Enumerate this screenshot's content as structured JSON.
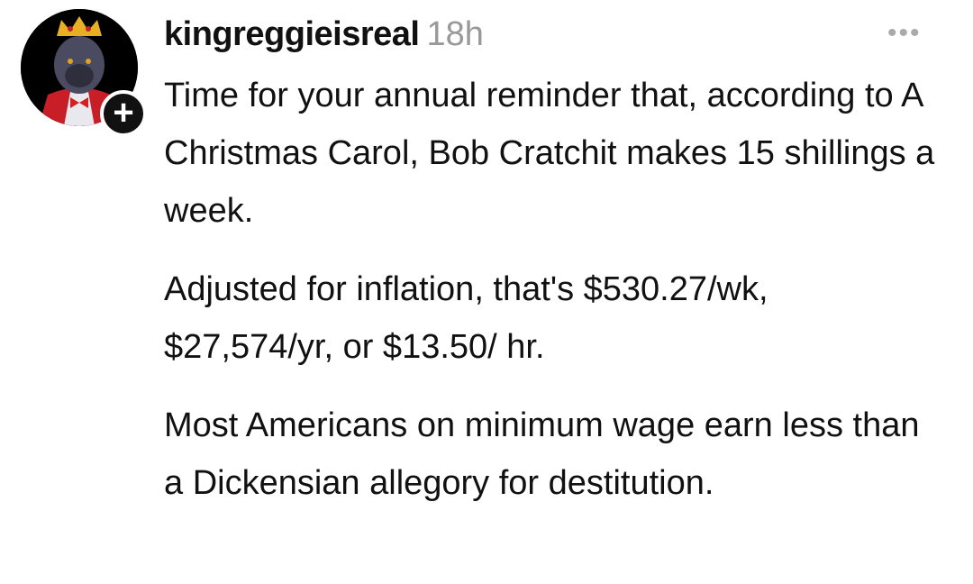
{
  "post": {
    "username": "kingreggieisreal",
    "timestamp": "18h",
    "more_icon": "ellipsis-icon",
    "follow_icon": "plus-icon",
    "paragraphs": [
      "Time for your annual reminder that, according to A Christmas Carol, Bob Cratchit makes 15 shillings a week.",
      "Adjusted for inflation, that's $530.27/wk, $27,574/yr, or $13.50/ hr.",
      "Most Americans on minimum wage earn less than a Dickensian allegory for destitution."
    ]
  }
}
